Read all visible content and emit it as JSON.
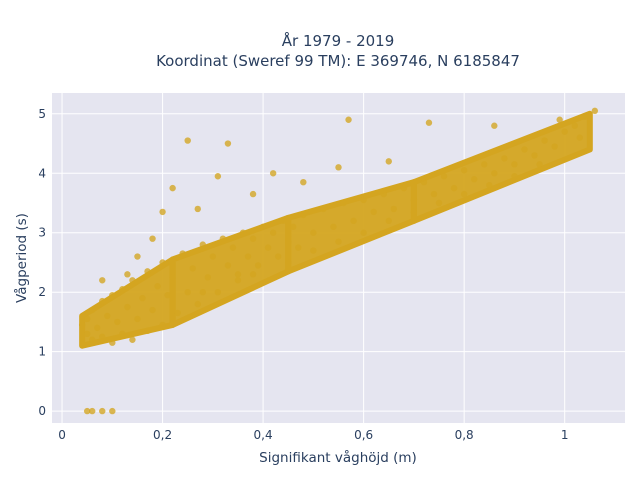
{
  "chart_data": {
    "type": "scatter",
    "title_line1": "År 1979 - 2019",
    "title_line2": "Koordinat (Sweref 99 TM): E 369746, N 6185847",
    "xlabel": "Signifikant våghöjd (m)",
    "ylabel": "Vågperiod (s)",
    "xlim": [
      -0.02,
      1.12
    ],
    "ylim": [
      -0.2,
      5.35
    ],
    "grid": true,
    "marker_color": "#d4a520",
    "background_color": "#e5e5f0",
    "x_ticks": [
      {
        "value": 0,
        "label": "0"
      },
      {
        "value": 0.2,
        "label": "0,2"
      },
      {
        "value": 0.4,
        "label": "0,4"
      },
      {
        "value": 0.6,
        "label": "0,6"
      },
      {
        "value": 0.8,
        "label": "0,8"
      },
      {
        "value": 1.0,
        "label": "1"
      }
    ],
    "y_ticks": [
      {
        "value": 0,
        "label": "0"
      },
      {
        "value": 1,
        "label": "1"
      },
      {
        "value": 2,
        "label": "2"
      },
      {
        "value": 3,
        "label": "3"
      },
      {
        "value": 4,
        "label": "4"
      },
      {
        "value": 5,
        "label": "5"
      }
    ],
    "points": [
      [
        0.05,
        0.0
      ],
      [
        0.06,
        0.0
      ],
      [
        0.08,
        0.0
      ],
      [
        0.1,
        0.0
      ],
      [
        0.04,
        1.45
      ],
      [
        0.05,
        1.3
      ],
      [
        0.05,
        1.55
      ],
      [
        0.06,
        1.2
      ],
      [
        0.06,
        1.7
      ],
      [
        0.07,
        1.4
      ],
      [
        0.08,
        1.25
      ],
      [
        0.08,
        1.85
      ],
      [
        0.09,
        1.6
      ],
      [
        0.1,
        1.15
      ],
      [
        0.1,
        1.95
      ],
      [
        0.11,
        1.5
      ],
      [
        0.12,
        1.3
      ],
      [
        0.12,
        2.05
      ],
      [
        0.13,
        1.75
      ],
      [
        0.14,
        1.2
      ],
      [
        0.14,
        2.2
      ],
      [
        0.15,
        1.55
      ],
      [
        0.16,
        1.9
      ],
      [
        0.17,
        1.35
      ],
      [
        0.17,
        2.35
      ],
      [
        0.18,
        1.7
      ],
      [
        0.19,
        2.1
      ],
      [
        0.2,
        1.45
      ],
      [
        0.2,
        2.5
      ],
      [
        0.21,
        1.95
      ],
      [
        0.22,
        2.25
      ],
      [
        0.23,
        1.65
      ],
      [
        0.24,
        2.65
      ],
      [
        0.25,
        2.0
      ],
      [
        0.26,
        2.4
      ],
      [
        0.27,
        1.8
      ],
      [
        0.28,
        2.8
      ],
      [
        0.29,
        2.25
      ],
      [
        0.3,
        2.6
      ],
      [
        0.31,
        2.0
      ],
      [
        0.32,
        2.9
      ],
      [
        0.33,
        2.45
      ],
      [
        0.34,
        2.75
      ],
      [
        0.35,
        2.3
      ],
      [
        0.36,
        3.0
      ],
      [
        0.37,
        2.6
      ],
      [
        0.38,
        2.9
      ],
      [
        0.39,
        2.45
      ],
      [
        0.4,
        3.1
      ],
      [
        0.41,
        2.75
      ],
      [
        0.42,
        3.0
      ],
      [
        0.43,
        2.6
      ],
      [
        0.44,
        3.2
      ],
      [
        0.45,
        2.85
      ],
      [
        0.46,
        3.1
      ],
      [
        0.47,
        2.75
      ],
      [
        0.48,
        3.3
      ],
      [
        0.5,
        3.0
      ],
      [
        0.52,
        3.4
      ],
      [
        0.54,
        3.1
      ],
      [
        0.56,
        3.5
      ],
      [
        0.58,
        3.2
      ],
      [
        0.6,
        3.55
      ],
      [
        0.62,
        3.35
      ],
      [
        0.64,
        3.65
      ],
      [
        0.66,
        3.4
      ],
      [
        0.68,
        3.75
      ],
      [
        0.7,
        3.55
      ],
      [
        0.72,
        3.85
      ],
      [
        0.74,
        3.65
      ],
      [
        0.76,
        3.95
      ],
      [
        0.78,
        3.75
      ],
      [
        0.8,
        4.05
      ],
      [
        0.82,
        3.9
      ],
      [
        0.84,
        4.15
      ],
      [
        0.86,
        4.0
      ],
      [
        0.88,
        4.25
      ],
      [
        0.9,
        4.15
      ],
      [
        0.92,
        4.4
      ],
      [
        0.94,
        4.3
      ],
      [
        0.96,
        4.55
      ],
      [
        0.98,
        4.45
      ],
      [
        1.0,
        4.7
      ],
      [
        1.02,
        4.8
      ],
      [
        1.04,
        4.95
      ],
      [
        1.06,
        5.05
      ],
      [
        1.03,
        4.6
      ],
      [
        0.99,
        4.9
      ],
      [
        0.25,
        4.55
      ],
      [
        0.33,
        4.5
      ],
      [
        0.57,
        4.9
      ],
      [
        0.73,
        4.85
      ],
      [
        0.86,
        4.8
      ],
      [
        0.22,
        3.75
      ],
      [
        0.31,
        3.95
      ],
      [
        0.42,
        4.0
      ],
      [
        0.2,
        3.35
      ],
      [
        0.18,
        2.9
      ],
      [
        0.15,
        2.6
      ],
      [
        0.13,
        2.3
      ],
      [
        0.08,
        2.2
      ],
      [
        0.28,
        2.0
      ],
      [
        0.35,
        2.2
      ],
      [
        0.38,
        2.3
      ],
      [
        0.45,
        2.5
      ],
      [
        0.5,
        2.7
      ],
      [
        0.55,
        2.85
      ],
      [
        0.6,
        3.0
      ],
      [
        0.65,
        3.2
      ],
      [
        0.7,
        3.35
      ],
      [
        0.75,
        3.5
      ],
      [
        0.8,
        3.65
      ],
      [
        0.85,
        3.8
      ],
      [
        0.9,
        3.95
      ],
      [
        0.95,
        4.15
      ],
      [
        0.65,
        4.2
      ],
      [
        0.55,
        4.1
      ],
      [
        0.48,
        3.85
      ],
      [
        0.38,
        3.65
      ],
      [
        0.27,
        3.4
      ]
    ],
    "density_bands": [
      {
        "x": [
          0.04,
          0.22
        ],
        "y_low": [
          1.1,
          1.45
        ],
        "y_high": [
          1.6,
          2.55
        ]
      },
      {
        "x": [
          0.22,
          0.45
        ],
        "y_low": [
          1.45,
          2.35
        ],
        "y_high": [
          2.55,
          3.25
        ]
      },
      {
        "x": [
          0.45,
          0.7
        ],
        "y_low": [
          2.35,
          3.2
        ],
        "y_high": [
          3.25,
          3.85
        ]
      },
      {
        "x": [
          0.7,
          1.05
        ],
        "y_low": [
          3.2,
          4.4
        ],
        "y_high": [
          3.85,
          5.0
        ]
      }
    ]
  }
}
